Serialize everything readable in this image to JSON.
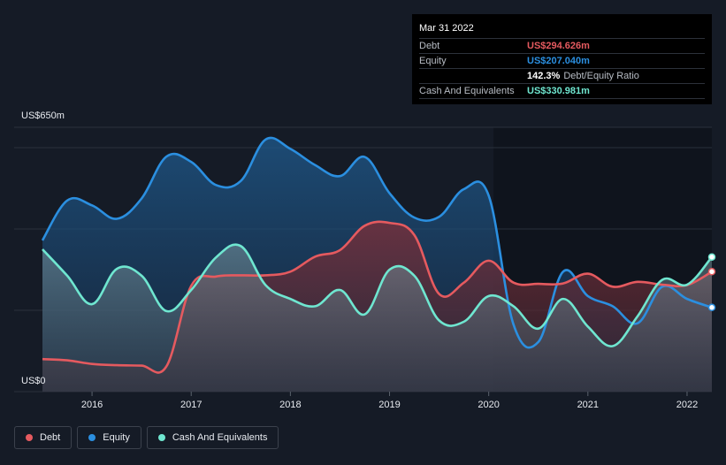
{
  "chart_data": {
    "type": "area",
    "title": "",
    "xlabel": "",
    "ylabel": "",
    "ylim": [
      0,
      650
    ],
    "y_axis_labels": {
      "max": "US$650m",
      "min": "US$0"
    },
    "x_ticks": [
      2016,
      2017,
      2018,
      2019,
      2020,
      2021,
      2022
    ],
    "x_tick_labels": [
      "2016",
      "2017",
      "2018",
      "2019",
      "2020",
      "2021",
      "2022"
    ],
    "xlim": [
      2015.5,
      2022.25
    ],
    "series": [
      {
        "name": "Equity",
        "color": "#2b8fe0",
        "points": [
          [
            2015.5,
            372
          ],
          [
            2015.75,
            470
          ],
          [
            2016.0,
            458
          ],
          [
            2016.25,
            425
          ],
          [
            2016.5,
            475
          ],
          [
            2016.75,
            578
          ],
          [
            2017.0,
            565
          ],
          [
            2017.25,
            508
          ],
          [
            2017.5,
            518
          ],
          [
            2017.75,
            620
          ],
          [
            2018.0,
            597
          ],
          [
            2018.25,
            557
          ],
          [
            2018.5,
            530
          ],
          [
            2018.75,
            577
          ],
          [
            2019.0,
            488
          ],
          [
            2019.25,
            428
          ],
          [
            2019.5,
            430
          ],
          [
            2019.75,
            498
          ],
          [
            2020.0,
            482
          ],
          [
            2020.25,
            165
          ],
          [
            2020.5,
            122
          ],
          [
            2020.75,
            295
          ],
          [
            2021.0,
            235
          ],
          [
            2021.25,
            210
          ],
          [
            2021.5,
            168
          ],
          [
            2021.75,
            258
          ],
          [
            2022.0,
            228
          ],
          [
            2022.25,
            207
          ]
        ]
      },
      {
        "name": "Debt",
        "color": "#e55a5f",
        "points": [
          [
            2015.5,
            80
          ],
          [
            2015.75,
            77
          ],
          [
            2016.0,
            68
          ],
          [
            2016.25,
            65
          ],
          [
            2016.5,
            64
          ],
          [
            2016.75,
            62
          ],
          [
            2017.0,
            260
          ],
          [
            2017.25,
            283
          ],
          [
            2017.5,
            286
          ],
          [
            2017.75,
            286
          ],
          [
            2018.0,
            295
          ],
          [
            2018.25,
            332
          ],
          [
            2018.5,
            348
          ],
          [
            2018.75,
            408
          ],
          [
            2019.0,
            415
          ],
          [
            2019.25,
            385
          ],
          [
            2019.5,
            240
          ],
          [
            2019.75,
            268
          ],
          [
            2020.0,
            322
          ],
          [
            2020.25,
            268
          ],
          [
            2020.5,
            265
          ],
          [
            2020.75,
            266
          ],
          [
            2021.0,
            290
          ],
          [
            2021.25,
            258
          ],
          [
            2021.5,
            270
          ],
          [
            2021.75,
            263
          ],
          [
            2022.0,
            262
          ],
          [
            2022.25,
            295
          ]
        ]
      },
      {
        "name": "Cash And Equivalents",
        "color": "#6fe6d0",
        "points": [
          [
            2015.5,
            350
          ],
          [
            2015.75,
            285
          ],
          [
            2016.0,
            215
          ],
          [
            2016.25,
            302
          ],
          [
            2016.5,
            285
          ],
          [
            2016.75,
            198
          ],
          [
            2017.0,
            250
          ],
          [
            2017.25,
            330
          ],
          [
            2017.5,
            358
          ],
          [
            2017.75,
            262
          ],
          [
            2018.0,
            228
          ],
          [
            2018.25,
            210
          ],
          [
            2018.5,
            250
          ],
          [
            2018.75,
            190
          ],
          [
            2019.0,
            300
          ],
          [
            2019.25,
            285
          ],
          [
            2019.5,
            175
          ],
          [
            2019.75,
            172
          ],
          [
            2020.0,
            235
          ],
          [
            2020.25,
            210
          ],
          [
            2020.5,
            155
          ],
          [
            2020.75,
            228
          ],
          [
            2021.0,
            160
          ],
          [
            2021.25,
            112
          ],
          [
            2021.5,
            185
          ],
          [
            2021.75,
            275
          ],
          [
            2022.0,
            263
          ],
          [
            2022.25,
            331
          ]
        ]
      }
    ]
  },
  "tooltip": {
    "date": "Mar 31 2022",
    "debt_label": "Debt",
    "debt_value": "US$294.626m",
    "equity_label": "Equity",
    "equity_value": "US$207.040m",
    "ratio_value": "142.3%",
    "ratio_label": "Debt/Equity Ratio",
    "cash_label": "Cash And Equivalents",
    "cash_value": "US$330.981m"
  },
  "legend": [
    {
      "label": "Debt",
      "color": "#e55a5f"
    },
    {
      "label": "Equity",
      "color": "#2b8fe0"
    },
    {
      "label": "Cash And Equivalents",
      "color": "#6fe6d0"
    }
  ]
}
